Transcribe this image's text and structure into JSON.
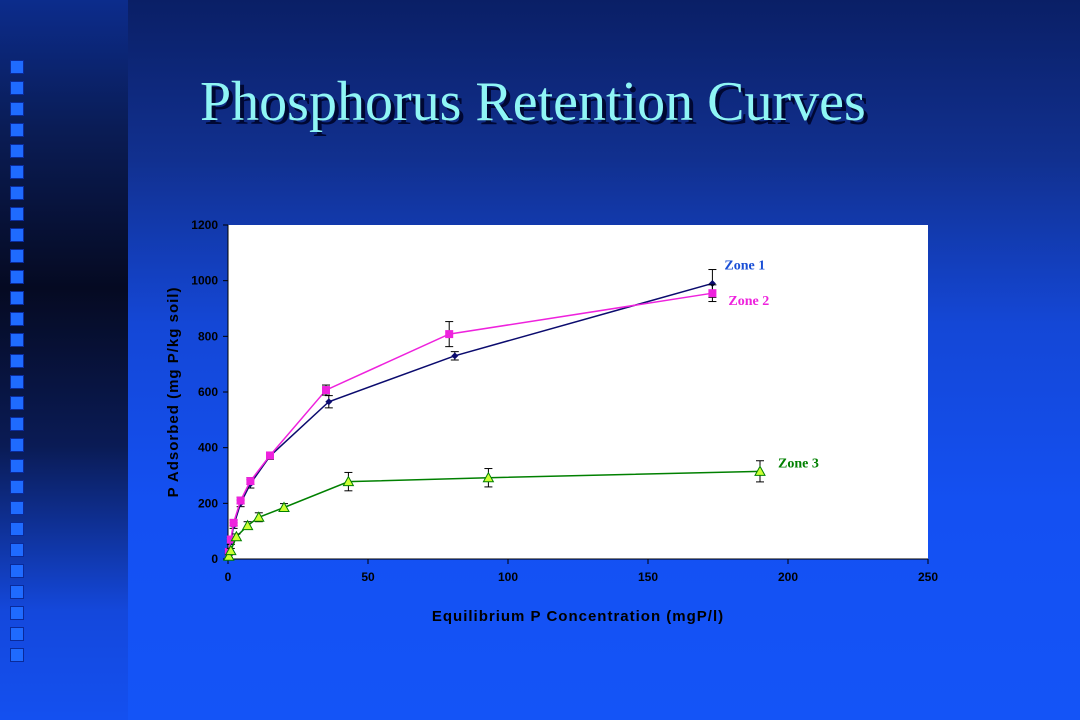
{
  "slide": {
    "title": "Phosphorus Retention Curves"
  },
  "chart_data": {
    "type": "line",
    "xlabel": "Equilibrium P Concentration (mgP/l)",
    "ylabel": "P Adsorbed (mg P/kg soil)",
    "xlim": [
      0,
      250
    ],
    "ylim": [
      0,
      1200
    ],
    "xticks": [
      0,
      50,
      100,
      150,
      200,
      250
    ],
    "yticks": [
      0,
      200,
      400,
      600,
      800,
      1000,
      1200
    ],
    "grid": false,
    "series": [
      {
        "name": "Zone 1",
        "color": "#0b0b6e",
        "label_color": "#1a4fd6",
        "marker": "diamond",
        "x": [
          0.3,
          1,
          2,
          4.5,
          8,
          15,
          36,
          81,
          173
        ],
        "y": [
          20,
          60,
          120,
          200,
          270,
          370,
          565,
          730,
          990
        ],
        "err": [
          5,
          8,
          10,
          12,
          15,
          12,
          22,
          15,
          50
        ]
      },
      {
        "name": "Zone 2",
        "color": "#ee22dd",
        "label_color": "#ee22dd",
        "marker": "square",
        "x": [
          0.3,
          1,
          2,
          4.5,
          8,
          15,
          35,
          79,
          173
        ],
        "y": [
          25,
          70,
          130,
          210,
          280,
          372,
          607,
          808,
          955
        ],
        "err": [
          5,
          8,
          10,
          12,
          12,
          10,
          18,
          45,
          30
        ]
      },
      {
        "name": "Zone 3",
        "color": "#008000",
        "label_color": "#008000",
        "marker": "triangle",
        "x": [
          0.3,
          1,
          3,
          7,
          11,
          20,
          43,
          93,
          190
        ],
        "y": [
          10,
          30,
          80,
          120,
          150,
          185,
          278,
          292,
          315
        ],
        "err": [
          5,
          8,
          10,
          14,
          16,
          14,
          33,
          33,
          38
        ]
      }
    ]
  }
}
